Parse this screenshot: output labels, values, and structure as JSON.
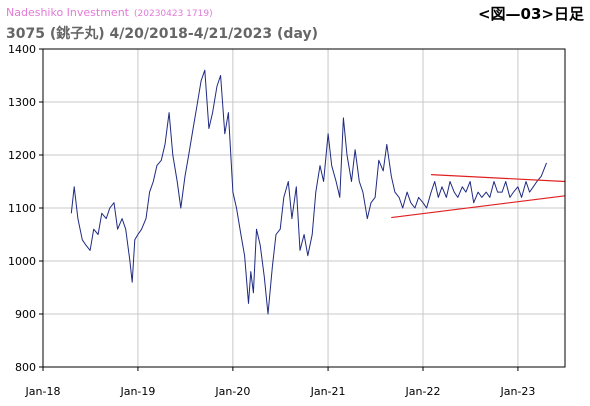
{
  "header": {
    "brand": "Nadeshiko Investment",
    "stamp": "(20230423 1719)",
    "figure_label": "<図—03>日足"
  },
  "chart_data": {
    "type": "line",
    "title": "3075 (銚子丸) 4/20/2018-4/21/2023 (day)",
    "xlabel": "",
    "ylabel": "",
    "xlim": [
      "2018-01-01",
      "2023-07-01"
    ],
    "ylim": [
      800,
      1400
    ],
    "yticks": [
      800,
      900,
      1000,
      1100,
      1200,
      1300,
      1400
    ],
    "xticks": [
      {
        "label": "Jan-18",
        "date": "2018-01-01"
      },
      {
        "label": "Jan-19",
        "date": "2019-01-01"
      },
      {
        "label": "Jan-20",
        "date": "2020-01-01"
      },
      {
        "label": "Jan-21",
        "date": "2021-01-01"
      },
      {
        "label": "Jan-22",
        "date": "2022-01-01"
      },
      {
        "label": "Jan-23",
        "date": "2023-01-01"
      }
    ],
    "grid": true,
    "colors": {
      "series": "#1f2a80",
      "trendline": "#e02020",
      "grid": "#c8c8c8"
    },
    "series": [
      {
        "x": [
          "2018-04-20",
          "2018-05-01",
          "2018-05-15",
          "2018-06-01",
          "2018-06-15",
          "2018-07-01",
          "2018-07-15",
          "2018-08-01",
          "2018-08-15",
          "2018-09-01",
          "2018-09-15",
          "2018-10-01",
          "2018-10-15",
          "2018-11-01",
          "2018-11-15",
          "2018-12-01",
          "2018-12-10",
          "2018-12-20",
          "2019-01-01",
          "2019-01-15",
          "2019-02-01",
          "2019-02-15",
          "2019-03-01",
          "2019-03-15",
          "2019-04-01",
          "2019-04-15",
          "2019-05-01",
          "2019-05-15",
          "2019-06-01",
          "2019-06-15",
          "2019-07-01",
          "2019-07-15",
          "2019-08-01",
          "2019-08-15",
          "2019-09-01",
          "2019-09-15",
          "2019-10-01",
          "2019-10-15",
          "2019-11-01",
          "2019-11-15",
          "2019-12-01",
          "2019-12-15",
          "2020-01-01",
          "2020-01-15",
          "2020-02-01",
          "2020-02-15",
          "2020-03-01",
          "2020-03-10",
          "2020-03-20",
          "2020-04-01",
          "2020-04-15",
          "2020-05-01",
          "2020-05-15",
          "2020-06-01",
          "2020-06-15",
          "2020-07-01",
          "2020-07-15",
          "2020-08-01",
          "2020-08-15",
          "2020-09-01",
          "2020-09-15",
          "2020-10-01",
          "2020-10-15",
          "2020-11-01",
          "2020-11-15",
          "2020-12-01",
          "2020-12-15",
          "2021-01-01",
          "2021-01-15",
          "2021-02-01",
          "2021-02-15",
          "2021-03-01",
          "2021-03-15",
          "2021-04-01",
          "2021-04-15",
          "2021-05-01",
          "2021-05-15",
          "2021-06-01",
          "2021-06-15",
          "2021-07-01",
          "2021-07-15",
          "2021-08-01",
          "2021-08-15",
          "2021-09-01",
          "2021-09-15",
          "2021-10-01",
          "2021-10-15",
          "2021-11-01",
          "2021-11-15",
          "2021-12-01",
          "2021-12-15",
          "2022-01-01",
          "2022-01-15",
          "2022-02-01",
          "2022-02-15",
          "2022-03-01",
          "2022-03-15",
          "2022-04-01",
          "2022-04-15",
          "2022-05-01",
          "2022-05-15",
          "2022-06-01",
          "2022-06-15",
          "2022-07-01",
          "2022-07-15",
          "2022-08-01",
          "2022-08-15",
          "2022-09-01",
          "2022-09-15",
          "2022-10-01",
          "2022-10-15",
          "2022-11-01",
          "2022-11-15",
          "2022-12-01",
          "2022-12-15",
          "2023-01-01",
          "2023-01-15",
          "2023-02-01",
          "2023-02-15",
          "2023-03-01",
          "2023-03-15",
          "2023-04-01",
          "2023-04-21"
        ],
        "y": [
          1090,
          1140,
          1080,
          1040,
          1030,
          1020,
          1060,
          1050,
          1090,
          1080,
          1100,
          1110,
          1060,
          1080,
          1060,
          1000,
          960,
          1040,
          1050,
          1060,
          1080,
          1130,
          1150,
          1180,
          1190,
          1220,
          1280,
          1200,
          1150,
          1100,
          1160,
          1200,
          1250,
          1290,
          1340,
          1360,
          1250,
          1280,
          1330,
          1350,
          1240,
          1280,
          1130,
          1100,
          1050,
          1010,
          920,
          980,
          940,
          1060,
          1030,
          970,
          900,
          990,
          1050,
          1060,
          1120,
          1150,
          1080,
          1140,
          1020,
          1050,
          1010,
          1050,
          1130,
          1180,
          1150,
          1240,
          1180,
          1150,
          1120,
          1270,
          1200,
          1150,
          1210,
          1150,
          1130,
          1080,
          1110,
          1120,
          1190,
          1170,
          1220,
          1160,
          1130,
          1120,
          1100,
          1130,
          1110,
          1100,
          1120,
          1110,
          1100,
          1130,
          1150,
          1120,
          1140,
          1120,
          1150,
          1130,
          1120,
          1140,
          1130,
          1150,
          1110,
          1130,
          1120,
          1130,
          1120,
          1150,
          1130,
          1130,
          1150,
          1120,
          1130,
          1140,
          1120,
          1150,
          1130,
          1140,
          1150,
          1160,
          1185
        ]
      }
    ],
    "trendlines": [
      {
        "x": [
          "2021-09-01",
          "2023-07-01"
        ],
        "y": [
          1082,
          1123
        ]
      },
      {
        "x": [
          "2022-02-01",
          "2023-07-01"
        ],
        "y": [
          1163,
          1150
        ]
      }
    ]
  }
}
